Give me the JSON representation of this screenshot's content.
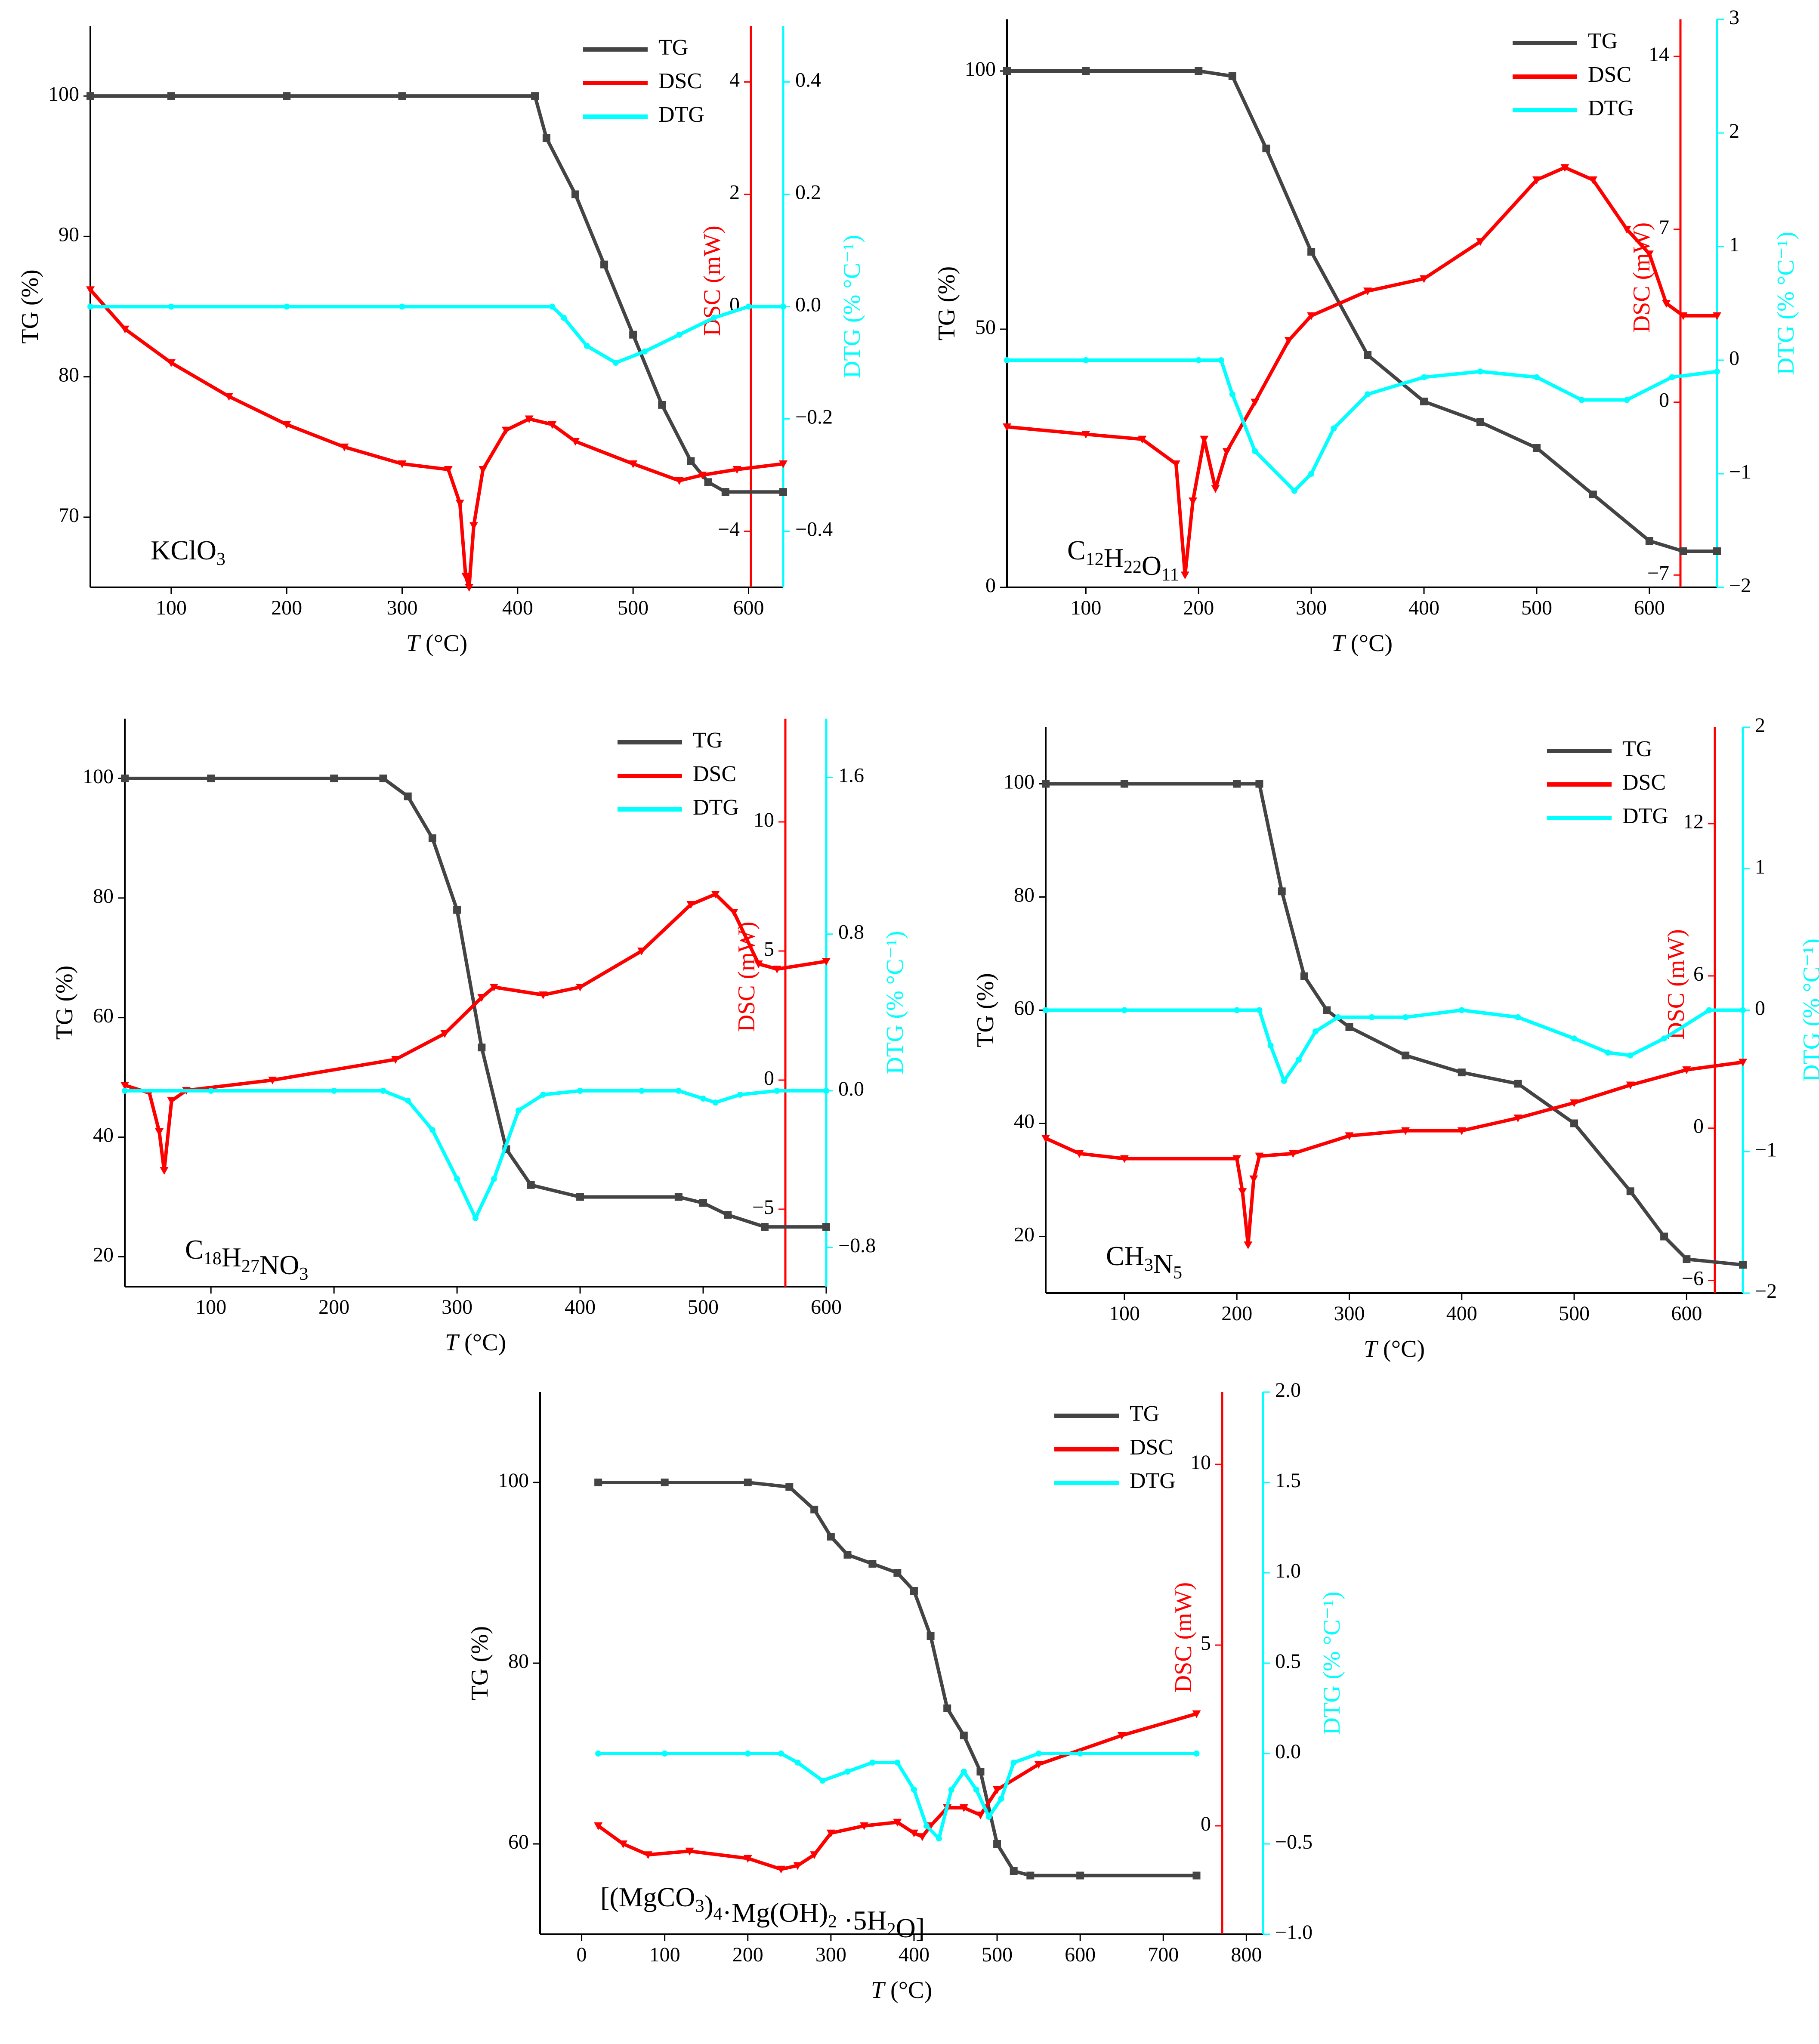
{
  "colors": {
    "TG": "#444444",
    "DSC": "#ff0000",
    "DTG": "#00ffff",
    "axis": "#000000"
  },
  "chart_data": [
    {
      "type": "line",
      "title": "",
      "annotation": {
        "base": "KClO",
        "sub": "3",
        "tail": ""
      },
      "xlabel": {
        "var": "T",
        "unit": " (°C)"
      },
      "ylabel_tg": "TG (%)",
      "ylabel_dsc": "DSC (mW)",
      "ylabel_dtg": "DTG (% °C⁻¹)",
      "xlim": [
        30,
        630
      ],
      "tg_lim": [
        65,
        105
      ],
      "dsc_lim": [
        -5,
        5
      ],
      "dtg_lim": [
        -0.5,
        0.5
      ],
      "x_ticks": [
        100,
        200,
        300,
        400,
        500,
        600
      ],
      "tg_ticks": [
        70,
        80,
        90,
        100
      ],
      "dsc_ticks": [
        -4,
        0,
        2,
        4
      ],
      "dtg_ticks": [
        -0.4,
        -0.2,
        0.0,
        0.2,
        0.4
      ],
      "dtg_tick_labels": [
        "−0.4",
        "−0.2",
        "0.0",
        "0.2",
        "0.4"
      ],
      "legend": [
        "TG",
        "DSC",
        "DTG"
      ],
      "series": [
        {
          "name": "TG",
          "x": [
            30,
            100,
            200,
            300,
            415,
            425,
            450,
            475,
            500,
            525,
            550,
            565,
            580,
            630
          ],
          "y": [
            100,
            100,
            100,
            100,
            100,
            97,
            93,
            88,
            83,
            78,
            74,
            72.5,
            71.8,
            71.8
          ]
        },
        {
          "name": "DSC",
          "x": [
            30,
            60,
            100,
            150,
            200,
            250,
            300,
            340,
            350,
            355,
            358,
            362,
            370,
            390,
            410,
            430,
            450,
            500,
            540,
            560,
            590,
            630
          ],
          "y": [
            0.3,
            -0.4,
            -1.0,
            -1.6,
            -2.1,
            -2.5,
            -2.8,
            -2.9,
            -3.5,
            -4.8,
            -5.0,
            -3.9,
            -2.9,
            -2.2,
            -2.0,
            -2.1,
            -2.4,
            -2.8,
            -3.1,
            -3.0,
            -2.9,
            -2.8
          ]
        },
        {
          "name": "DTG",
          "x": [
            30,
            100,
            200,
            300,
            430,
            440,
            460,
            485,
            510,
            540,
            570,
            600,
            630
          ],
          "y": [
            0,
            0,
            0,
            0,
            0,
            -0.02,
            -0.07,
            -0.1,
            -0.08,
            -0.05,
            -0.02,
            0,
            0
          ]
        }
      ]
    },
    {
      "type": "line",
      "title": "",
      "annotation": {
        "base": "C",
        "sub": "12",
        "tail": "H22O11"
      },
      "annotation_parts": [
        [
          "C",
          "12"
        ],
        [
          "H",
          "22"
        ],
        [
          "O",
          "11"
        ]
      ],
      "xlabel": {
        "var": "T",
        "unit": " (°C)"
      },
      "ylabel_tg": "TG (%)",
      "ylabel_dsc": "DSC (mW)",
      "ylabel_dtg": "DTG (% °C⁻¹)",
      "xlim": [
        30,
        660
      ],
      "tg_lim": [
        0,
        110
      ],
      "dsc_lim": [
        -7.5,
        15.5
      ],
      "dtg_lim": [
        -2,
        3
      ],
      "x_ticks": [
        100,
        200,
        300,
        400,
        500,
        600
      ],
      "tg_ticks": [
        0,
        50,
        100
      ],
      "dsc_ticks": [
        -7,
        0,
        7,
        14
      ],
      "dsc_tick_labels": [
        "−7",
        "0",
        "7",
        "14"
      ],
      "dtg_ticks": [
        -2,
        -1,
        0,
        1,
        2,
        3
      ],
      "dtg_tick_labels": [
        "−2",
        "−1",
        "0",
        "1",
        "2",
        "3"
      ],
      "legend": [
        "TG",
        "DSC",
        "DTG"
      ],
      "series": [
        {
          "name": "TG",
          "x": [
            30,
            100,
            200,
            230,
            260,
            300,
            350,
            400,
            450,
            500,
            550,
            600,
            630,
            660
          ],
          "y": [
            100,
            100,
            100,
            99,
            85,
            65,
            45,
            36,
            32,
            27,
            18,
            9,
            7,
            7
          ]
        },
        {
          "name": "DSC",
          "x": [
            30,
            100,
            150,
            180,
            188,
            195,
            205,
            215,
            225,
            250,
            280,
            300,
            350,
            400,
            450,
            500,
            525,
            550,
            580,
            600,
            615,
            630,
            660
          ],
          "y": [
            -1.0,
            -1.3,
            -1.5,
            -2.5,
            -7.0,
            -4.0,
            -1.5,
            -3.5,
            -2.0,
            0.0,
            2.5,
            3.5,
            4.5,
            5.0,
            6.5,
            9.0,
            9.5,
            9.0,
            7.0,
            6.0,
            4.0,
            3.5,
            3.5
          ]
        },
        {
          "name": "DTG",
          "x": [
            30,
            100,
            200,
            220,
            230,
            250,
            285,
            300,
            320,
            350,
            400,
            450,
            500,
            540,
            580,
            620,
            660
          ],
          "y": [
            0,
            0,
            0,
            0,
            -0.3,
            -0.8,
            -1.15,
            -1.0,
            -0.6,
            -0.3,
            -0.15,
            -0.1,
            -0.15,
            -0.35,
            -0.35,
            -0.15,
            -0.1
          ]
        }
      ]
    },
    {
      "type": "line",
      "title": "",
      "annotation": {
        "base": "C",
        "sub": "18",
        "tail": ""
      },
      "annotation_parts": [
        [
          "C",
          "18"
        ],
        [
          "H",
          "27"
        ],
        [
          "NO",
          "3"
        ]
      ],
      "xlabel": {
        "var": "T",
        "unit": " (°C)"
      },
      "ylabel_tg": "TG (%)",
      "ylabel_dsc": "DSC (mW)",
      "ylabel_dtg": "DTG (% °C⁻¹)",
      "xlim": [
        30,
        600
      ],
      "tg_lim": [
        15,
        110
      ],
      "dsc_lim": [
        -8,
        14
      ],
      "dtg_lim": [
        -1.0,
        1.9
      ],
      "x_ticks": [
        100,
        200,
        300,
        400,
        500,
        600
      ],
      "tg_ticks": [
        20,
        40,
        60,
        80,
        100
      ],
      "dsc_ticks": [
        -5,
        0,
        5,
        10
      ],
      "dsc_tick_labels": [
        "−5",
        "0",
        "5",
        "10"
      ],
      "dtg_ticks": [
        -0.8,
        0.0,
        0.8,
        1.6
      ],
      "dtg_tick_labels": [
        "−0.8",
        "0.0",
        "0.8",
        "1.6"
      ],
      "legend": [
        "TG",
        "DSC",
        "DTG"
      ],
      "series": [
        {
          "name": "TG",
          "x": [
            30,
            100,
            200,
            240,
            260,
            280,
            300,
            320,
            340,
            360,
            400,
            480,
            500,
            520,
            550,
            600
          ],
          "y": [
            100,
            100,
            100,
            100,
            97,
            90,
            78,
            55,
            38,
            32,
            30,
            30,
            29,
            27,
            25,
            25
          ]
        },
        {
          "name": "DSC",
          "x": [
            30,
            50,
            58,
            62,
            68,
            80,
            150,
            250,
            290,
            320,
            330,
            370,
            400,
            450,
            490,
            510,
            525,
            545,
            560,
            600
          ],
          "y": [
            -0.2,
            -0.5,
            -2.0,
            -3.5,
            -0.8,
            -0.4,
            0.0,
            0.8,
            1.8,
            3.2,
            3.6,
            3.3,
            3.6,
            5.0,
            6.8,
            7.2,
            6.5,
            4.5,
            4.3,
            4.6
          ]
        },
        {
          "name": "DTG",
          "x": [
            30,
            100,
            200,
            240,
            260,
            280,
            300,
            315,
            330,
            350,
            370,
            400,
            450,
            480,
            500,
            510,
            530,
            560,
            600
          ],
          "y": [
            0,
            0,
            0,
            0,
            -0.05,
            -0.2,
            -0.45,
            -0.65,
            -0.45,
            -0.1,
            -0.02,
            0,
            0,
            0,
            -0.04,
            -0.06,
            -0.02,
            0,
            0
          ]
        }
      ]
    },
    {
      "type": "line",
      "title": "",
      "annotation": {
        "base": "CH",
        "sub": "3",
        "tail": ""
      },
      "annotation_parts": [
        [
          "CH",
          "3"
        ],
        [
          "N",
          "5"
        ]
      ],
      "xlabel": {
        "var": "T",
        "unit": " (°C)"
      },
      "ylabel_tg": "TG (%)",
      "ylabel_dsc": "DSC (mW)",
      "ylabel_dtg": "DTG (% °C⁻¹)",
      "xlim": [
        30,
        650
      ],
      "tg_lim": [
        10,
        110
      ],
      "dsc_lim": [
        -6.5,
        15.8
      ],
      "dtg_lim": [
        -2,
        2
      ],
      "x_ticks": [
        100,
        200,
        300,
        400,
        500,
        600
      ],
      "tg_ticks": [
        20,
        40,
        60,
        80,
        100
      ],
      "dsc_ticks": [
        -6,
        0,
        6,
        12
      ],
      "dsc_tick_labels": [
        "−6",
        "0",
        "6",
        "12"
      ],
      "dtg_ticks": [
        -2,
        -1,
        0,
        1,
        2
      ],
      "dtg_tick_labels": [
        "−2",
        "−1",
        "0",
        "1",
        "2"
      ],
      "legend": [
        "TG",
        "DSC",
        "DTG"
      ],
      "series": [
        {
          "name": "TG",
          "x": [
            30,
            100,
            200,
            220,
            240,
            260,
            280,
            300,
            350,
            400,
            450,
            500,
            550,
            580,
            600,
            650
          ],
          "y": [
            100,
            100,
            100,
            100,
            81,
            66,
            60,
            57,
            52,
            49,
            47,
            40,
            28,
            20,
            16,
            15
          ]
        },
        {
          "name": "DSC",
          "x": [
            30,
            60,
            100,
            200,
            205,
            210,
            215,
            220,
            250,
            300,
            350,
            400,
            450,
            500,
            550,
            600,
            650
          ],
          "y": [
            -0.4,
            -1.0,
            -1.2,
            -1.2,
            -2.5,
            -4.6,
            -2.0,
            -1.1,
            -1.0,
            -0.3,
            -0.1,
            -0.1,
            0.4,
            1.0,
            1.7,
            2.3,
            2.6
          ]
        },
        {
          "name": "DTG",
          "x": [
            30,
            100,
            200,
            220,
            230,
            242,
            255,
            270,
            290,
            320,
            350,
            400,
            450,
            500,
            530,
            550,
            580,
            620,
            650
          ],
          "y": [
            0,
            0,
            0,
            0,
            -0.25,
            -0.5,
            -0.35,
            -0.15,
            -0.05,
            -0.05,
            -0.05,
            0,
            -0.05,
            -0.2,
            -0.3,
            -0.32,
            -0.2,
            0,
            0
          ]
        }
      ]
    },
    {
      "type": "line",
      "title": "",
      "annotation": {
        "base": "[(MgCO",
        "sub": "3",
        "tail": ""
      },
      "annotation_parts": [
        [
          "[(MgCO",
          "3"
        ],
        [
          ")",
          "4"
        ],
        [
          "·Mg(OH)",
          "2"
        ],
        [
          " ·5H",
          "2"
        ],
        [
          "O]",
          ""
        ]
      ],
      "xlabel": {
        "var": "T",
        "unit": " (°C)"
      },
      "ylabel_tg": "TG (%)",
      "ylabel_dsc": "DSC (mW)",
      "ylabel_dtg": "DTG (% °C⁻¹)",
      "xlim": [
        -50,
        820
      ],
      "tg_lim": [
        50,
        110
      ],
      "dsc_lim": [
        -3,
        12
      ],
      "dtg_lim": [
        -1.0,
        2.0
      ],
      "x_ticks": [
        0,
        100,
        200,
        300,
        400,
        500,
        600,
        700,
        800
      ],
      "tg_ticks": [
        60,
        80,
        100
      ],
      "dsc_ticks": [
        0,
        5,
        10
      ],
      "dtg_ticks": [
        -1.0,
        -0.5,
        0.0,
        0.5,
        1.0,
        1.5,
        2.0
      ],
      "dtg_tick_labels": [
        "−1.0",
        "−0.5",
        "0.0",
        "0.5",
        "1.0",
        "1.5",
        "2.0"
      ],
      "legend": [
        "TG",
        "DSC",
        "DTG"
      ],
      "series": [
        {
          "name": "TG",
          "x": [
            20,
            100,
            200,
            250,
            280,
            300,
            320,
            350,
            380,
            400,
            420,
            440,
            460,
            480,
            500,
            520,
            540,
            600,
            740
          ],
          "y": [
            100,
            100,
            100,
            99.5,
            97,
            94,
            92,
            91,
            90,
            88,
            83,
            75,
            72,
            68,
            60,
            57,
            56.5,
            56.5,
            56.5
          ]
        },
        {
          "name": "DSC",
          "x": [
            20,
            50,
            80,
            130,
            200,
            240,
            260,
            280,
            300,
            340,
            380,
            400,
            410,
            420,
            440,
            460,
            480,
            500,
            550,
            650,
            740
          ],
          "y": [
            0.0,
            -0.5,
            -0.8,
            -0.7,
            -0.9,
            -1.2,
            -1.1,
            -0.8,
            -0.2,
            0.0,
            0.1,
            -0.2,
            -0.3,
            0.0,
            0.5,
            0.5,
            0.3,
            1.0,
            1.7,
            2.5,
            3.1
          ]
        },
        {
          "name": "DTG",
          "x": [
            20,
            100,
            200,
            240,
            260,
            290,
            320,
            350,
            380,
            400,
            415,
            430,
            445,
            460,
            475,
            490,
            505,
            520,
            550,
            600,
            740
          ],
          "y": [
            0,
            0,
            0,
            0,
            -0.05,
            -0.15,
            -0.1,
            -0.05,
            -0.05,
            -0.2,
            -0.4,
            -0.47,
            -0.2,
            -0.1,
            -0.2,
            -0.35,
            -0.25,
            -0.05,
            0,
            0,
            0
          ]
        }
      ]
    }
  ]
}
